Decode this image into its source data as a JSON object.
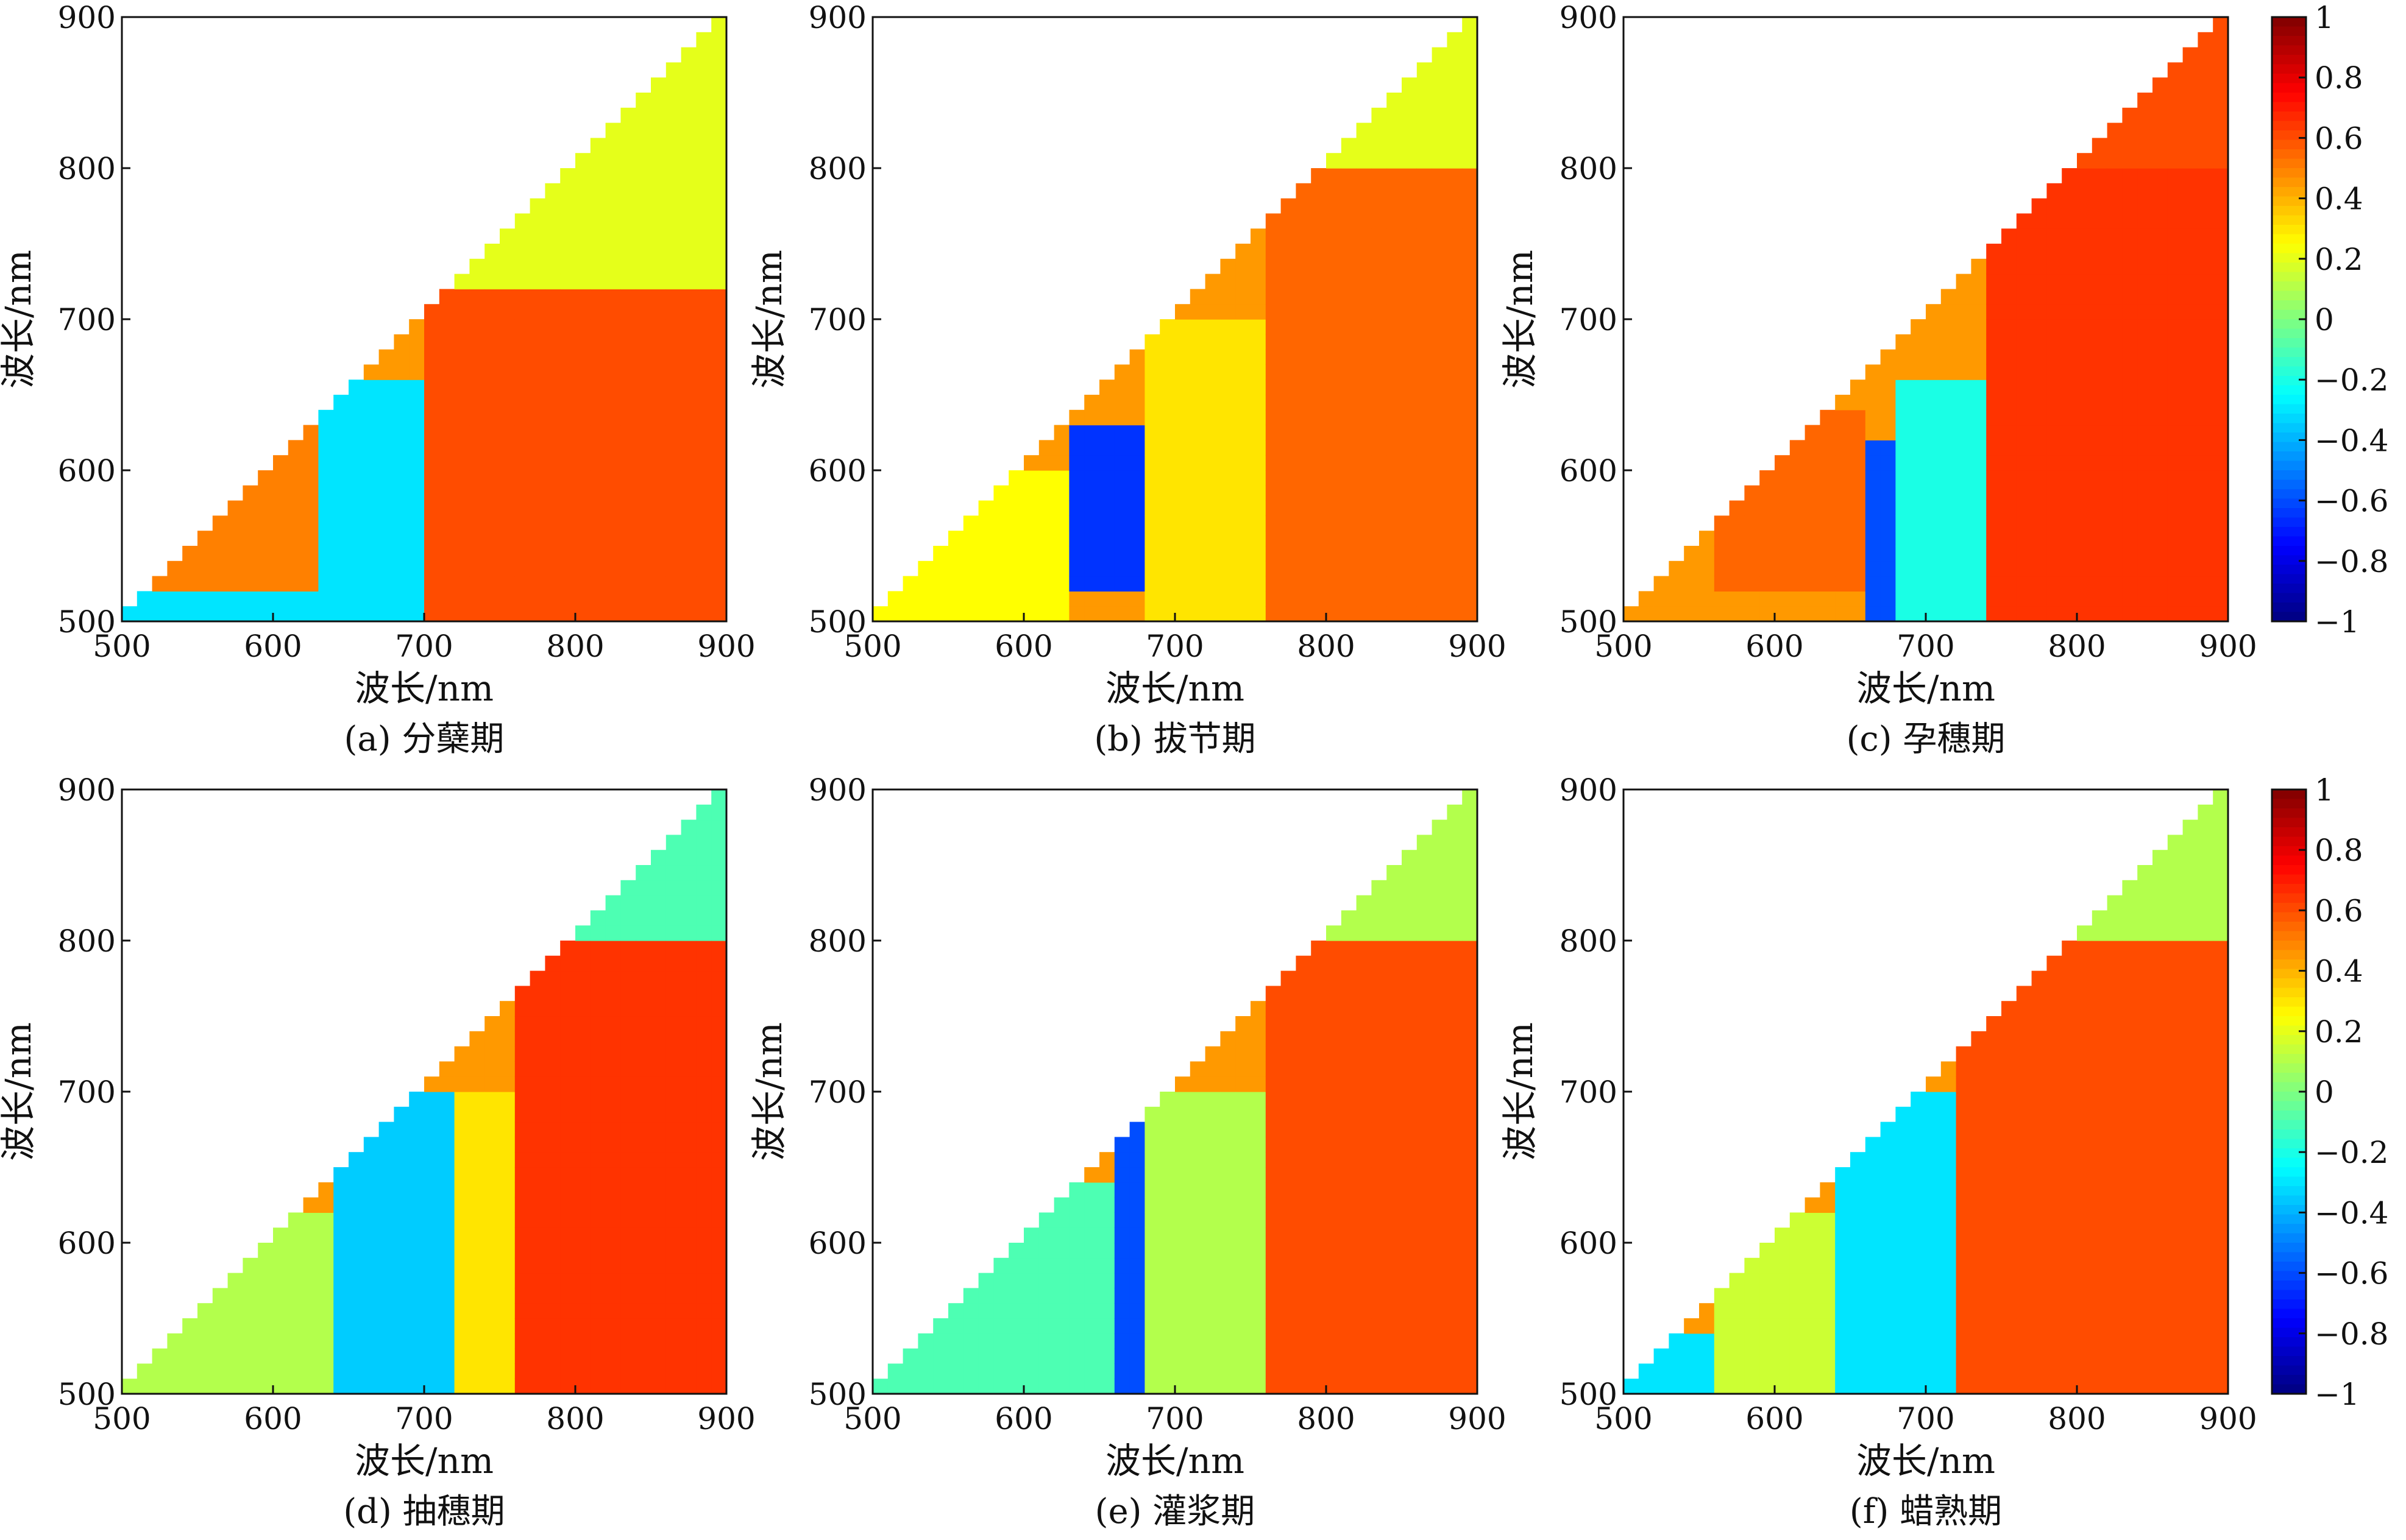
{
  "figure": {
    "xlabel": "波长/nm",
    "ylabel": "波长/nm",
    "panels": [
      {
        "caption": "(a) 分蘖期"
      },
      {
        "caption": "(b) 拔节期"
      },
      {
        "caption": "(c) 孕穗期"
      },
      {
        "caption": "(d) 抽穗期"
      },
      {
        "caption": "(e) 灌浆期"
      },
      {
        "caption": "(f) 蜡熟期"
      }
    ],
    "colorbar_ticks": [
      "1",
      "0.8",
      "0.6",
      "0.4",
      "0.2",
      "0",
      "−0.2",
      "−0.4",
      "−0.6",
      "−0.8",
      "−1"
    ]
  },
  "chart_data": [
    {
      "type": "heatmap",
      "caption": "(a) 分蘖期",
      "xlabel": "波长/nm",
      "ylabel": "波长/nm",
      "xlim": [
        500,
        900
      ],
      "ylim": [
        500,
        900
      ],
      "xticks": [
        500,
        600,
        700,
        800,
        900
      ],
      "yticks": [
        500,
        600,
        700,
        800,
        900
      ],
      "shape": "lower-right triangle (y <= x)",
      "color_range": [
        -1,
        1
      ],
      "colormap": "jet",
      "regions": [
        {
          "x_min": 700,
          "x_max": 900,
          "y_min": 500,
          "y_max": 720,
          "value": 0.6
        },
        {
          "x_min": 630,
          "x_max": 700,
          "y_min": 500,
          "y_max": 660,
          "value": -0.3
        },
        {
          "x_min": 500,
          "x_max": 630,
          "y_min": 520,
          "y_max": 630,
          "value": 0.5
        },
        {
          "x_min": 500,
          "x_max": 640,
          "y_min": 500,
          "y_max": 520,
          "value": -0.3
        },
        {
          "x_min": 720,
          "x_max": 900,
          "y_min": 720,
          "y_max": 900,
          "value": 0.2
        }
      ]
    },
    {
      "type": "heatmap",
      "caption": "(b) 拔节期",
      "xlabel": "波长/nm",
      "ylabel": "波长/nm",
      "xlim": [
        500,
        900
      ],
      "ylim": [
        500,
        900
      ],
      "xticks": [
        500,
        600,
        700,
        800,
        900
      ],
      "yticks": [
        500,
        600,
        700,
        800,
        900
      ],
      "shape": "lower-right triangle (y <= x)",
      "color_range": [
        -1,
        1
      ],
      "colormap": "jet",
      "regions": [
        {
          "x_min": 760,
          "x_max": 900,
          "y_min": 500,
          "y_max": 800,
          "value": 0.55
        },
        {
          "x_min": 630,
          "x_max": 680,
          "y_min": 520,
          "y_max": 630,
          "value": -0.65
        },
        {
          "x_min": 680,
          "x_max": 760,
          "y_min": 500,
          "y_max": 700,
          "value": 0.3
        },
        {
          "x_min": 500,
          "x_max": 630,
          "y_min": 500,
          "y_max": 600,
          "value": 0.25
        },
        {
          "x_min": 800,
          "x_max": 900,
          "y_min": 800,
          "y_max": 900,
          "value": 0.2
        }
      ]
    },
    {
      "type": "heatmap",
      "caption": "(c) 孕穗期",
      "xlabel": "波长/nm",
      "ylabel": "波长/nm",
      "xlim": [
        500,
        900
      ],
      "ylim": [
        500,
        900
      ],
      "xticks": [
        500,
        600,
        700,
        800,
        900
      ],
      "yticks": [
        500,
        600,
        700,
        800,
        900
      ],
      "shape": "lower-right triangle (y <= x)",
      "color_range": [
        -1,
        1
      ],
      "colormap": "jet",
      "regions": [
        {
          "x_min": 740,
          "x_max": 900,
          "y_min": 500,
          "y_max": 800,
          "value": 0.65
        },
        {
          "x_min": 660,
          "x_max": 680,
          "y_min": 500,
          "y_max": 620,
          "value": -0.6
        },
        {
          "x_min": 560,
          "x_max": 660,
          "y_min": 520,
          "y_max": 640,
          "value": 0.55
        },
        {
          "x_min": 680,
          "x_max": 740,
          "y_min": 500,
          "y_max": 660,
          "value": -0.2
        },
        {
          "x_min": 800,
          "x_max": 900,
          "y_min": 800,
          "y_max": 900,
          "value": 0.6
        }
      ]
    },
    {
      "type": "heatmap",
      "caption": "(d) 抽穗期",
      "xlabel": "波长/nm",
      "ylabel": "波长/nm",
      "xlim": [
        500,
        900
      ],
      "ylim": [
        500,
        900
      ],
      "xticks": [
        500,
        600,
        700,
        800,
        900
      ],
      "yticks": [
        500,
        600,
        700,
        800,
        900
      ],
      "shape": "lower-right triangle (y <= x)",
      "color_range": [
        -1,
        1
      ],
      "colormap": "jet",
      "regions": [
        {
          "x_min": 760,
          "x_max": 900,
          "y_min": 500,
          "y_max": 800,
          "value": 0.65
        },
        {
          "x_min": 640,
          "x_max": 720,
          "y_min": 500,
          "y_max": 700,
          "value": -0.35
        },
        {
          "x_min": 720,
          "x_max": 760,
          "y_min": 500,
          "y_max": 700,
          "value": 0.3
        },
        {
          "x_min": 500,
          "x_max": 640,
          "y_min": 500,
          "y_max": 620,
          "value": 0.1
        },
        {
          "x_min": 800,
          "x_max": 900,
          "y_min": 800,
          "y_max": 900,
          "value": -0.1
        }
      ]
    },
    {
      "type": "heatmap",
      "caption": "(e) 灌浆期",
      "xlabel": "波长/nm",
      "ylabel": "波长/nm",
      "xlim": [
        500,
        900
      ],
      "ylim": [
        500,
        900
      ],
      "xticks": [
        500,
        600,
        700,
        800,
        900
      ],
      "yticks": [
        500,
        600,
        700,
        800,
        900
      ],
      "shape": "lower-right triangle (y <= x)",
      "color_range": [
        -1,
        1
      ],
      "colormap": "jet",
      "regions": [
        {
          "x_min": 760,
          "x_max": 900,
          "y_min": 500,
          "y_max": 800,
          "value": 0.6
        },
        {
          "x_min": 660,
          "x_max": 680,
          "y_min": 500,
          "y_max": 680,
          "value": -0.6
        },
        {
          "x_min": 680,
          "x_max": 760,
          "y_min": 500,
          "y_max": 700,
          "value": 0.1
        },
        {
          "x_min": 500,
          "x_max": 660,
          "y_min": 500,
          "y_max": 640,
          "value": -0.1
        },
        {
          "x_min": 800,
          "x_max": 900,
          "y_min": 800,
          "y_max": 900,
          "value": 0.1
        }
      ]
    },
    {
      "type": "heatmap",
      "caption": "(f) 蜡熟期",
      "xlabel": "波长/nm",
      "ylabel": "波长/nm",
      "xlim": [
        500,
        900
      ],
      "ylim": [
        500,
        900
      ],
      "xticks": [
        500,
        600,
        700,
        800,
        900
      ],
      "yticks": [
        500,
        600,
        700,
        800,
        900
      ],
      "shape": "lower-right triangle (y <= x)",
      "color_range": [
        -1,
        1
      ],
      "colormap": "jet",
      "regions": [
        {
          "x_min": 720,
          "x_max": 900,
          "y_min": 500,
          "y_max": 800,
          "value": 0.6
        },
        {
          "x_min": 640,
          "x_max": 720,
          "y_min": 500,
          "y_max": 700,
          "value": -0.3
        },
        {
          "x_min": 560,
          "x_max": 640,
          "y_min": 500,
          "y_max": 620,
          "value": 0.15
        },
        {
          "x_min": 500,
          "x_max": 560,
          "y_min": 500,
          "y_max": 540,
          "value": -0.3
        },
        {
          "x_min": 800,
          "x_max": 900,
          "y_min": 800,
          "y_max": 900,
          "value": 0.1
        }
      ]
    }
  ]
}
